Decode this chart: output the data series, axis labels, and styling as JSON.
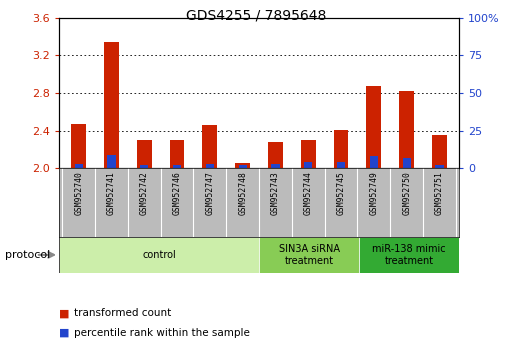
{
  "title": "GDS4255 / 7895648",
  "samples": [
    "GSM952740",
    "GSM952741",
    "GSM952742",
    "GSM952746",
    "GSM952747",
    "GSM952748",
    "GSM952743",
    "GSM952744",
    "GSM952745",
    "GSM952749",
    "GSM952750",
    "GSM952751"
  ],
  "red_values": [
    2.47,
    3.34,
    2.3,
    2.3,
    2.46,
    2.06,
    2.28,
    2.3,
    2.41,
    2.87,
    2.82,
    2.35
  ],
  "blue_pcts": [
    3,
    9,
    2,
    2,
    3,
    2,
    3,
    4,
    4,
    8,
    7,
    2
  ],
  "ylim_left": [
    2.0,
    3.6
  ],
  "yticks_left": [
    2.0,
    2.4,
    2.8,
    3.2,
    3.6
  ],
  "yticks_right": [
    0,
    25,
    50,
    75,
    100
  ],
  "groups": [
    {
      "label": "control",
      "start": 0,
      "end": 6,
      "color": "#cceeaa"
    },
    {
      "label": "SIN3A siRNA\ntreatment",
      "start": 6,
      "end": 9,
      "color": "#88cc55"
    },
    {
      "label": "miR-138 mimic\ntreatment",
      "start": 9,
      "end": 12,
      "color": "#33aa33"
    }
  ],
  "bar_width": 0.45,
  "red_color": "#cc2200",
  "blue_color": "#2244cc",
  "tick_bg_color": "#bbbbbb",
  "legend_red": "transformed count",
  "legend_blue": "percentile rank within the sample",
  "protocol_label": "protocol"
}
